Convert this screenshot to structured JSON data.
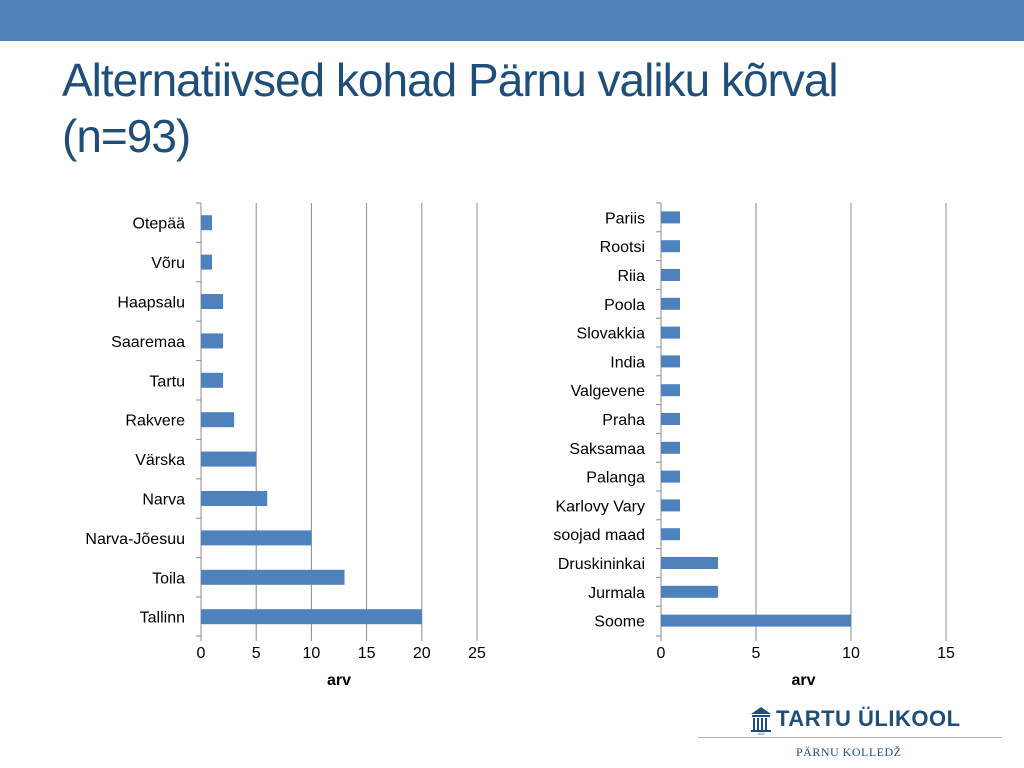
{
  "slide": {
    "title_line1": "Alternatiivsed kohad Pärnu valiku kõrval",
    "title_line2": "(n=93)",
    "brand_color": "#4f81bd",
    "title_color": "#1f4e79"
  },
  "logo": {
    "name": "TARTU ÜLIKOOL",
    "subtitle": "PÄRNU KOLLEDŽ",
    "year": "1632",
    "icon": "university-building-icon"
  },
  "chart_data": [
    {
      "type": "bar",
      "orientation": "horizontal",
      "categories": [
        "Otepää",
        "Võru",
        "Haapsalu",
        "Saaremaa",
        "Tartu",
        "Rakvere",
        "Värska",
        "Narva",
        "Narva-Jõesuu",
        "Toila",
        "Tallinn"
      ],
      "values": [
        1,
        1,
        2,
        2,
        2,
        3,
        5,
        6,
        10,
        13,
        20
      ],
      "xlabel": "arv",
      "ylabel": "",
      "xlim": [
        0,
        25
      ],
      "ticks": [
        0,
        5,
        10,
        15,
        20,
        25
      ],
      "grid": true,
      "legend": "none",
      "bar_color": "#4f81bd"
    },
    {
      "type": "bar",
      "orientation": "horizontal",
      "categories": [
        "Pariis",
        "Rootsi",
        "Riia",
        "Poola",
        "Slovakkia",
        "India",
        "Valgevene",
        "Praha",
        "Saksamaa",
        "Palanga",
        "Karlovy Vary",
        "soojad maad",
        "Druskininkai",
        "Jurmala",
        "Soome"
      ],
      "values": [
        1,
        1,
        1,
        1,
        1,
        1,
        1,
        1,
        1,
        1,
        1,
        1,
        3,
        3,
        10
      ],
      "xlabel": "arv",
      "ylabel": "",
      "xlim": [
        0,
        15
      ],
      "ticks": [
        0,
        5,
        10,
        15
      ],
      "grid": true,
      "legend": "none",
      "bar_color": "#4f81bd"
    }
  ]
}
